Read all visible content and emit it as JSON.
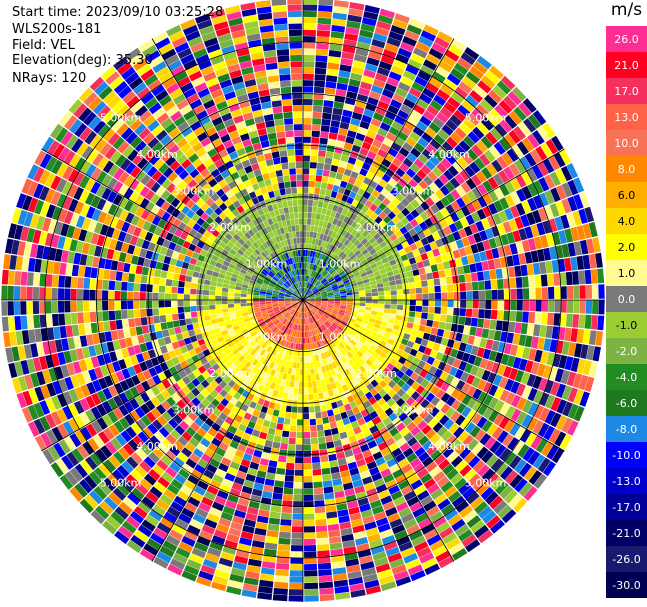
{
  "header": {
    "start_time": "Start time: 2023/09/10 03:25:28",
    "instrument": "WLS200s-181",
    "field": "Field: VEL",
    "elevation": "Elevation(deg): 35.30",
    "nrays": "NRays: 120"
  },
  "colorbar": {
    "unit": "m/s",
    "levels": [
      {
        "label": "26.0",
        "color": "#ff2e93"
      },
      {
        "label": "21.0",
        "color": "#ff0022"
      },
      {
        "label": "17.0",
        "color": "#f6305d"
      },
      {
        "label": "13.0",
        "color": "#ff6246"
      },
      {
        "label": "10.0",
        "color": "#f87258"
      },
      {
        "label": "8.0",
        "color": "#ff8800"
      },
      {
        "label": "6.0",
        "color": "#ffae00"
      },
      {
        "label": "4.0",
        "color": "#ffd800"
      },
      {
        "label": "2.0",
        "color": "#ffff00"
      },
      {
        "label": "1.0",
        "color": "#fffb90"
      },
      {
        "label": "0.0",
        "color": "#7a7a7a"
      },
      {
        "label": "-1.0",
        "color": "#9acd32"
      },
      {
        "label": "-2.0",
        "color": "#7cb342"
      },
      {
        "label": "-4.0",
        "color": "#228b22"
      },
      {
        "label": "-6.0",
        "color": "#1f7a1f"
      },
      {
        "label": "-8.0",
        "color": "#1e88e5"
      },
      {
        "label": "-10.0",
        "color": "#0000ff"
      },
      {
        "label": "-13.0",
        "color": "#0000cd"
      },
      {
        "label": "-17.0",
        "color": "#000099"
      },
      {
        "label": "-21.0",
        "color": "#000066"
      },
      {
        "label": "-26.0",
        "color": "#191970"
      },
      {
        "label": "-30.0",
        "color": "#000050"
      }
    ]
  },
  "chart_data": {
    "type": "heatmap",
    "projection": "polar PPI",
    "field": "VEL",
    "rays": 120,
    "range_rings_km": [
      1.0,
      2.0,
      3.0,
      4.0,
      5.0
    ],
    "range_ring_labels": [
      "1.00km",
      "2.00km",
      "3.00km",
      "4.00km",
      "5.00km"
    ],
    "azimuth_spokes_deg": [
      0,
      30,
      60,
      90,
      120,
      150,
      180,
      210,
      240,
      270,
      300,
      330
    ],
    "color_scale_min": -30.0,
    "color_scale_max": 26.0
  }
}
